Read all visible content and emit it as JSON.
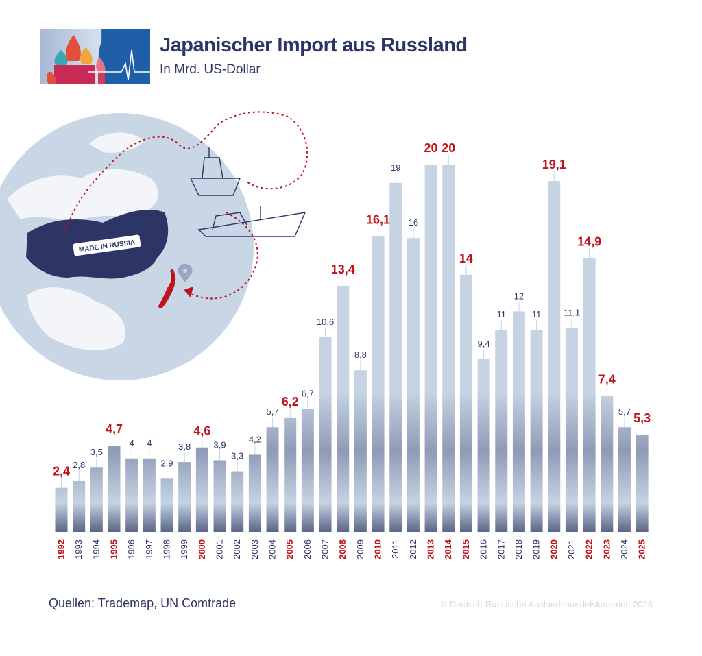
{
  "header": {
    "title": "Japanischer Import aus Russland",
    "subtitle": "In Mrd. US-Dollar"
  },
  "illustration": {
    "stamp_text": "MADE IN RUSSIA"
  },
  "footer": {
    "source": "Quellen: Trademap, UN Comtrade",
    "copyright": "© Deutsch-Russische Auslandshandelskammer, 2026"
  },
  "colors": {
    "navy": "#2d3466",
    "accent_red": "#c0141c",
    "bar_light": "#c5d3e3",
    "bar_dark": "#5a6487"
  },
  "chart_data": {
    "type": "bar",
    "title": "Japanischer Import aus Russland",
    "subtitle": "In Mrd. US-Dollar",
    "categories": [
      "1992",
      "1993",
      "1994",
      "1995",
      "1996",
      "1997",
      "1998",
      "1999",
      "2000",
      "2001",
      "2002",
      "2003",
      "2004",
      "2005",
      "2006",
      "2007",
      "2008",
      "2009",
      "2010",
      "2011",
      "2012",
      "2013",
      "2014",
      "2015",
      "2016",
      "2017",
      "2018",
      "2019",
      "2020",
      "2021",
      "2022",
      "2023",
      "2024",
      "2025"
    ],
    "values": [
      2.4,
      2.8,
      3.5,
      4.7,
      4,
      4,
      2.9,
      3.8,
      4.6,
      3.9,
      3.3,
      4.2,
      5.7,
      6.2,
      6.7,
      10.6,
      13.4,
      8.8,
      16.1,
      19,
      16,
      20,
      20,
      14,
      9.4,
      11,
      12,
      11,
      19.1,
      11.1,
      14.9,
      7.4,
      5.7,
      5.3
    ],
    "value_labels": [
      "2,4",
      "2,8",
      "3,5",
      "4,7",
      "4",
      "4",
      "2,9",
      "3,8",
      "4,6",
      "3,9",
      "3,3",
      "4,2",
      "5,7",
      "6,2",
      "6,7",
      "10,6",
      "13,4",
      "8,8",
      "16,1",
      "19",
      "16",
      "20",
      "20",
      "14",
      "9,4",
      "11",
      "12",
      "11",
      "19,1",
      "11,1",
      "14,9",
      "7,4",
      "5,7",
      "5,3"
    ],
    "highlighted_years": [
      "1992",
      "1995",
      "2000",
      "2005",
      "2008",
      "2010",
      "2013",
      "2014",
      "2015",
      "2020",
      "2022",
      "2023",
      "2025"
    ],
    "ylim": [
      0,
      20
    ],
    "grid": false,
    "legend": "none"
  }
}
